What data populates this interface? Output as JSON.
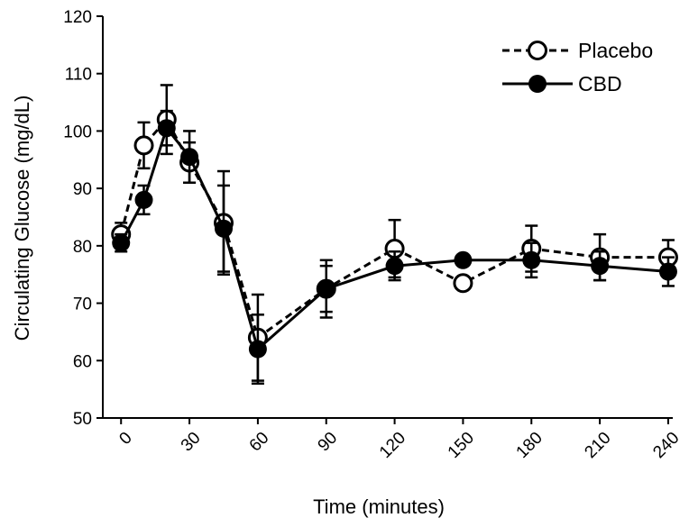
{
  "chart_data": {
    "type": "line",
    "title": "",
    "xlabel": "Time (minutes)",
    "ylabel": "Circulating Glucose (mg/dL)",
    "xlim": [
      -8,
      242
    ],
    "ylim": [
      50,
      120
    ],
    "x_ticks": [
      0,
      30,
      60,
      90,
      120,
      150,
      180,
      210,
      240
    ],
    "y_ticks": [
      50,
      60,
      70,
      80,
      90,
      100,
      110,
      120
    ],
    "grid": false,
    "legend": "top-right",
    "x": [
      0,
      10,
      20,
      30,
      45,
      60,
      90,
      120,
      150,
      180,
      210,
      240
    ],
    "series": [
      {
        "name": "Placebo",
        "marker": "open-circle",
        "line_style": "dashed",
        "values": [
          82,
          97.5,
          102,
          94.5,
          84,
          64,
          72.5,
          79.5,
          73.5,
          79.5,
          78,
          78
        ],
        "error": [
          2,
          4,
          6,
          3.5,
          9,
          7.5,
          5,
          5,
          0,
          4,
          4,
          3
        ]
      },
      {
        "name": "CBD",
        "marker": "filled-circle",
        "line_style": "solid",
        "values": [
          80.5,
          88,
          100.5,
          95.5,
          83,
          62,
          72.5,
          76.5,
          77.5,
          77.5,
          76.5,
          75.5
        ],
        "error": [
          1.5,
          2.5,
          3,
          4.5,
          7.5,
          6,
          4,
          2.5,
          0,
          3,
          2.5,
          2.5
        ]
      }
    ]
  }
}
